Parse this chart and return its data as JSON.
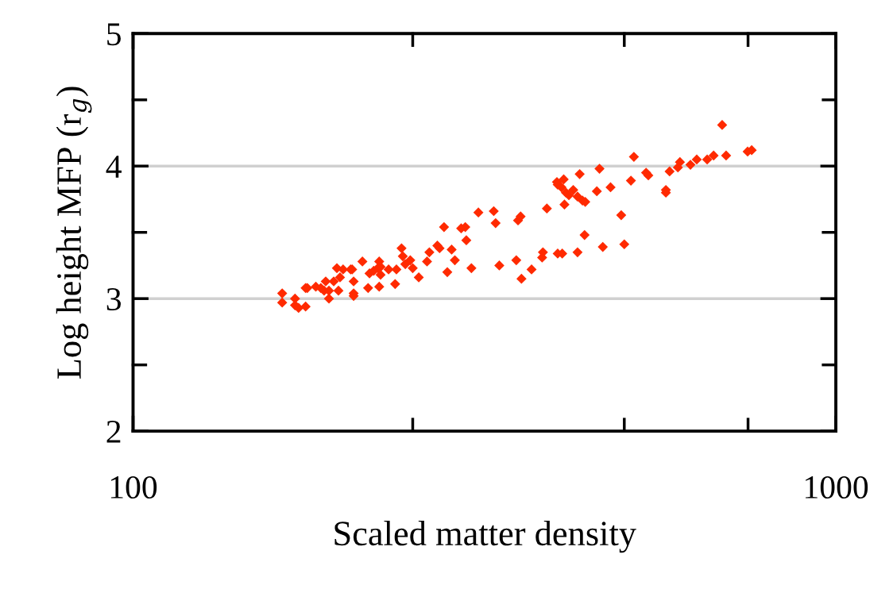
{
  "chart_data": {
    "type": "scatter",
    "xlabel": "Scaled matter density",
    "ylabel": "Log height MFP (r$_{g}$)",
    "log": "x",
    "xlim": [
      100,
      1000
    ],
    "xticks": [
      100,
      {
        "value": 250,
        "label": null
      },
      {
        "value": 500,
        "label": null
      },
      {
        "value": 750,
        "label": null
      },
      1000
    ],
    "ylim": [
      2,
      5
    ],
    "yticks": [
      2,
      {
        "value": 2.5,
        "label": null
      },
      3,
      {
        "value": 3.5,
        "label": null
      },
      4,
      {
        "value": 4.5,
        "label": null
      },
      5
    ],
    "grid": "y",
    "marker": "diamond",
    "series": [
      {
        "color": "#ff2a00",
        "x": [
          163,
          163,
          170,
          170,
          172,
          176,
          176,
          177,
          182,
          185,
          188,
          187,
          190,
          190,
          193,
          195,
          199,
          204,
          205,
          196,
          197,
          206,
          206,
          206,
          212,
          216,
          217,
          220,
          223,
          224,
          225,
          225,
          224,
          231,
          236,
          237,
          241,
          242,
          244,
          248,
          250,
          255,
          262,
          264,
          271,
          273,
          277,
          280,
          284,
          287,
          293,
          297,
          298,
          303,
          310,
          326,
          328,
          332,
          351,
          353,
          356,
          357,
          369,
          382,
          383,
          388,
          401,
          402,
          407,
          402,
          408,
          411,
          410,
          413,
          417,
          423,
          429,
          429,
          432,
          436,
          440,
          439,
          457,
          461,
          466,
          478,
          495,
          500,
          511,
          516,
          537,
          541,
          573,
          573,
          580,
          596,
          600,
          621,
          634,
          656,
          670,
          689,
          698,
          749,
          759
        ],
        "values": [
          3.04,
          2.97,
          3.0,
          2.95,
          2.93,
          2.94,
          3.08,
          3.08,
          3.09,
          3.08,
          3.13,
          3.06,
          3.0,
          3.06,
          3.13,
          3.23,
          3.22,
          3.22,
          3.22,
          3.06,
          3.16,
          3.13,
          3.04,
          3.02,
          3.28,
          3.08,
          3.19,
          3.21,
          3.23,
          3.28,
          3.24,
          3.18,
          3.09,
          3.22,
          3.11,
          3.22,
          3.38,
          3.32,
          3.26,
          3.29,
          3.23,
          3.16,
          3.28,
          3.35,
          3.4,
          3.38,
          3.54,
          3.2,
          3.37,
          3.29,
          3.53,
          3.54,
          3.44,
          3.23,
          3.65,
          3.66,
          3.57,
          3.25,
          3.29,
          3.59,
          3.62,
          3.15,
          3.22,
          3.31,
          3.35,
          3.68,
          3.88,
          3.86,
          3.84,
          3.34,
          3.34,
          3.71,
          3.9,
          3.8,
          3.78,
          3.82,
          3.77,
          3.35,
          3.94,
          3.74,
          3.73,
          3.48,
          3.81,
          3.98,
          3.39,
          3.84,
          3.63,
          3.41,
          3.89,
          4.07,
          3.95,
          3.93,
          3.8,
          3.82,
          3.96,
          3.99,
          4.03,
          4.01,
          4.05,
          4.05,
          4.08,
          4.31,
          4.08,
          4.11,
          4.12
        ]
      }
    ]
  }
}
